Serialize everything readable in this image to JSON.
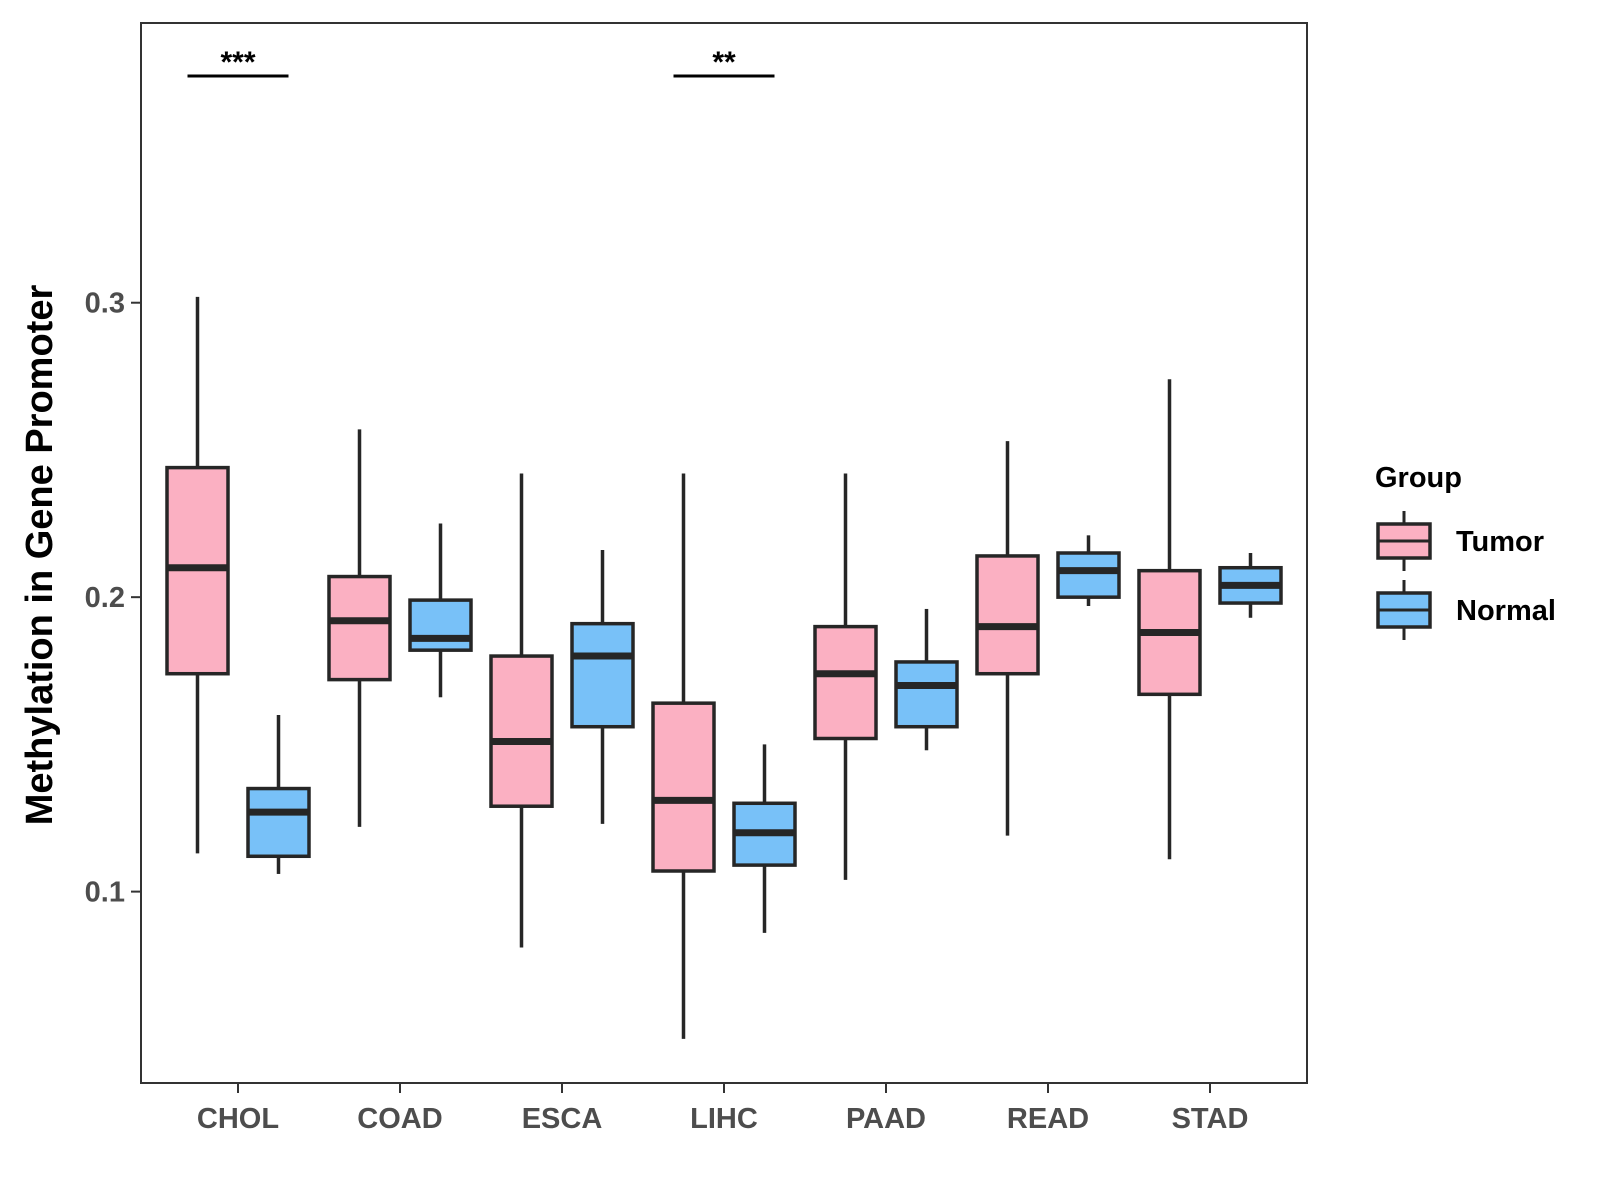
{
  "chart_data": {
    "type": "boxplot",
    "title": "",
    "xlabel": "",
    "ylabel": "Methylation in Gene Promoter",
    "ylim": [
      0.035,
      0.395
    ],
    "yticks": [
      0.1,
      0.2,
      0.3
    ],
    "ytick_labels": [
      "0.1",
      "0.2",
      "0.3"
    ],
    "categories": [
      "CHOL",
      "COAD",
      "ESCA",
      "LIHC",
      "PAAD",
      "READ",
      "STAD"
    ],
    "legend": {
      "title": "Group",
      "position": "right",
      "entries": [
        {
          "name": "Tumor",
          "color": "#fbb0c2"
        },
        {
          "name": "Normal",
          "color": "#78c1f8"
        }
      ]
    },
    "series": [
      {
        "name": "Tumor",
        "color": "#fbb0c2",
        "boxes": [
          {
            "category": "CHOL",
            "min": 0.113,
            "q1": 0.174,
            "median": 0.21,
            "q3": 0.244,
            "max": 0.302
          },
          {
            "category": "COAD",
            "min": 0.122,
            "q1": 0.172,
            "median": 0.192,
            "q3": 0.207,
            "max": 0.257
          },
          {
            "category": "ESCA",
            "min": 0.081,
            "q1": 0.129,
            "median": 0.151,
            "q3": 0.18,
            "max": 0.242
          },
          {
            "category": "LIHC",
            "min": 0.05,
            "q1": 0.107,
            "median": 0.131,
            "q3": 0.164,
            "max": 0.242
          },
          {
            "category": "PAAD",
            "min": 0.104,
            "q1": 0.152,
            "median": 0.174,
            "q3": 0.19,
            "max": 0.242
          },
          {
            "category": "READ",
            "min": 0.119,
            "q1": 0.174,
            "median": 0.19,
            "q3": 0.214,
            "max": 0.253
          },
          {
            "category": "STAD",
            "min": 0.111,
            "q1": 0.167,
            "median": 0.188,
            "q3": 0.209,
            "max": 0.274
          }
        ]
      },
      {
        "name": "Normal",
        "color": "#78c1f8",
        "boxes": [
          {
            "category": "CHOL",
            "min": 0.106,
            "q1": 0.112,
            "median": 0.127,
            "q3": 0.135,
            "max": 0.16
          },
          {
            "category": "COAD",
            "min": 0.166,
            "q1": 0.182,
            "median": 0.186,
            "q3": 0.199,
            "max": 0.225
          },
          {
            "category": "ESCA",
            "min": 0.123,
            "q1": 0.156,
            "median": 0.18,
            "q3": 0.191,
            "max": 0.216
          },
          {
            "category": "LIHC",
            "min": 0.086,
            "q1": 0.109,
            "median": 0.12,
            "q3": 0.13,
            "max": 0.15
          },
          {
            "category": "PAAD",
            "min": 0.148,
            "q1": 0.156,
            "median": 0.17,
            "q3": 0.178,
            "max": 0.196
          },
          {
            "category": "READ",
            "min": 0.197,
            "q1": 0.2,
            "median": 0.209,
            "q3": 0.215,
            "max": 0.221
          },
          {
            "category": "STAD",
            "min": 0.193,
            "q1": 0.198,
            "median": 0.204,
            "q3": 0.21,
            "max": 0.215
          }
        ]
      }
    ],
    "annotations": [
      {
        "category": "CHOL",
        "label": "***",
        "y": 0.377
      },
      {
        "category": "LIHC",
        "label": "**",
        "y": 0.377
      }
    ]
  }
}
